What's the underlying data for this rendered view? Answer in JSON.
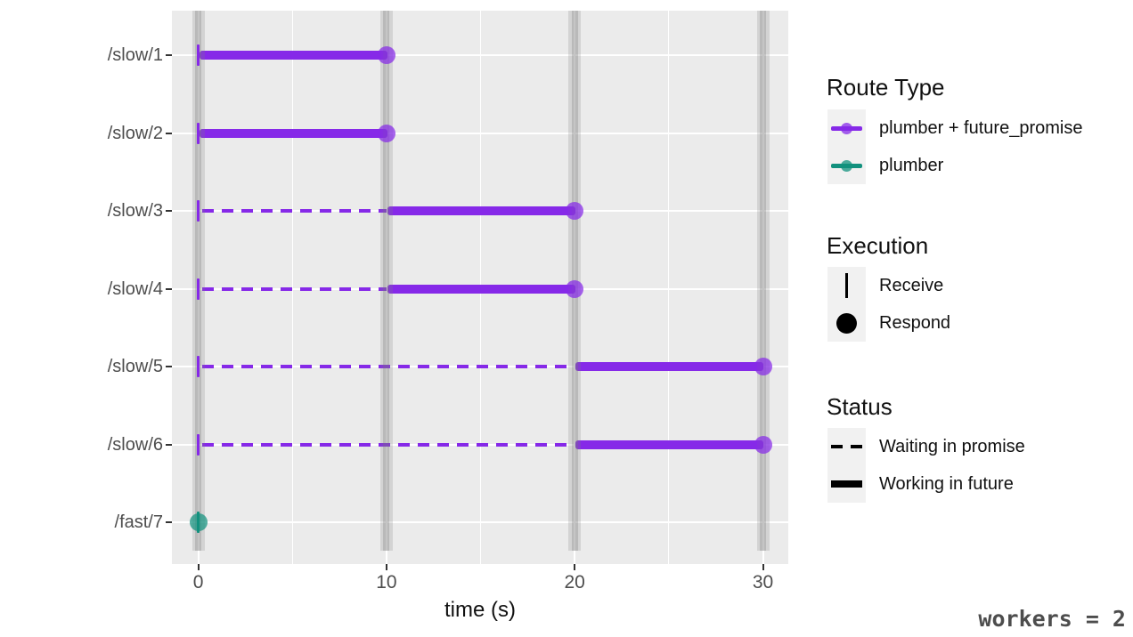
{
  "colors": {
    "panel_bg": "#EBEBEB",
    "gridline": "#FFFFFF",
    "worker_bar_gray": "#9A9A9A",
    "purple": "#8629E8",
    "teal": "#12917E",
    "axis_text": "#4D4D4D",
    "tick_mark": "#333333",
    "legend_key_bg": "#F1F1F1"
  },
  "chart_data": {
    "type": "timeline",
    "title": "",
    "xlabel": "time (s)",
    "ylabel": "",
    "x_ticks": [
      0,
      10,
      20,
      30
    ],
    "x_tick_labels": [
      "0",
      "10",
      "20",
      "30"
    ],
    "x_minor_ticks": [
      5,
      15,
      25
    ],
    "xlim": [
      -1.4,
      31.8
    ],
    "grid": "on",
    "worker_count_annotation": "workers = 2",
    "worker_activity_marks_s": [
      0,
      10,
      20,
      30
    ],
    "routes": [
      {
        "label": "/slow/1",
        "route_type": "plumber + future_promise",
        "receive_s": 0,
        "waiting_in_promise": null,
        "working_in_future": [
          0,
          10
        ],
        "respond_s": 10
      },
      {
        "label": "/slow/2",
        "route_type": "plumber + future_promise",
        "receive_s": 0,
        "waiting_in_promise": null,
        "working_in_future": [
          0,
          10
        ],
        "respond_s": 10
      },
      {
        "label": "/slow/3",
        "route_type": "plumber + future_promise",
        "receive_s": 0,
        "waiting_in_promise": [
          0,
          10
        ],
        "working_in_future": [
          10,
          20
        ],
        "respond_s": 20
      },
      {
        "label": "/slow/4",
        "route_type": "plumber + future_promise",
        "receive_s": 0,
        "waiting_in_promise": [
          0,
          10
        ],
        "working_in_future": [
          10,
          20
        ],
        "respond_s": 20
      },
      {
        "label": "/slow/5",
        "route_type": "plumber + future_promise",
        "receive_s": 0,
        "waiting_in_promise": [
          0,
          20
        ],
        "working_in_future": [
          20,
          30
        ],
        "respond_s": 30
      },
      {
        "label": "/slow/6",
        "route_type": "plumber + future_promise",
        "receive_s": 0,
        "waiting_in_promise": [
          0,
          20
        ],
        "working_in_future": [
          20,
          30
        ],
        "respond_s": 30
      },
      {
        "label": "/fast/7",
        "route_type": "plumber",
        "receive_s": 0,
        "waiting_in_promise": null,
        "working_in_future": null,
        "respond_s": 0
      }
    ]
  },
  "legend": {
    "route_type": {
      "title": "Route Type",
      "entries": [
        {
          "label": "plumber + future_promise",
          "color": "#8629E8"
        },
        {
          "label": "plumber",
          "color": "#12917E"
        }
      ]
    },
    "execution": {
      "title": "Execution",
      "entries": [
        {
          "label": "Receive",
          "glyph": "vertical-bar"
        },
        {
          "label": "Respond",
          "glyph": "filled-circle"
        }
      ]
    },
    "status": {
      "title": "Status",
      "entries": [
        {
          "label": "Waiting in promise",
          "glyph": "dashed-line"
        },
        {
          "label": "Working in future",
          "glyph": "solid-line"
        }
      ]
    }
  },
  "annotation": {
    "workers": "workers = 2"
  }
}
